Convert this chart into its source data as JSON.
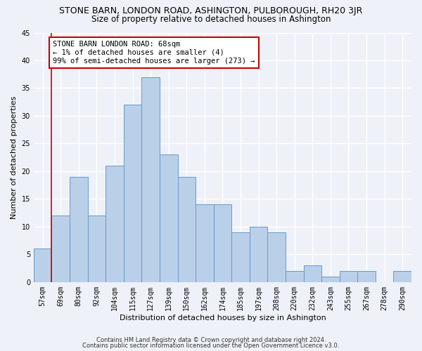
{
  "title": "STONE BARN, LONDON ROAD, ASHINGTON, PULBOROUGH, RH20 3JR",
  "subtitle": "Size of property relative to detached houses in Ashington",
  "xlabel": "Distribution of detached houses by size in Ashington",
  "ylabel": "Number of detached properties",
  "bin_labels": [
    "57sqm",
    "69sqm",
    "80sqm",
    "92sqm",
    "104sqm",
    "115sqm",
    "127sqm",
    "139sqm",
    "150sqm",
    "162sqm",
    "174sqm",
    "185sqm",
    "197sqm",
    "208sqm",
    "220sqm",
    "232sqm",
    "243sqm",
    "255sqm",
    "267sqm",
    "278sqm",
    "290sqm"
  ],
  "bar_heights": [
    6,
    12,
    19,
    12,
    21,
    32,
    37,
    23,
    19,
    14,
    14,
    9,
    10,
    9,
    2,
    3,
    1,
    2,
    2,
    0,
    2
  ],
  "bar_color": "#bad0e8",
  "bar_edge_color": "#6699cc",
  "annotation_line1": "STONE BARN LONDON ROAD: 68sqm",
  "annotation_line2": "← 1% of detached houses are smaller (4)",
  "annotation_line3": "99% of semi-detached houses are larger (273) →",
  "annotation_box_color": "#ffffff",
  "annotation_box_edge_color": "#cc0000",
  "ylim": [
    0,
    45
  ],
  "yticks": [
    0,
    5,
    10,
    15,
    20,
    25,
    30,
    35,
    40,
    45
  ],
  "footer_line1": "Contains HM Land Registry data © Crown copyright and database right 2024.",
  "footer_line2": "Contains public sector information licensed under the Open Government Licence v3.0.",
  "background_color": "#eef2f8",
  "grid_color": "#ffffff",
  "title_fontsize": 9,
  "subtitle_fontsize": 8.5,
  "ylabel_fontsize": 8,
  "xlabel_fontsize": 8,
  "tick_fontsize": 7,
  "annotation_fontsize": 7.5,
  "footer_fontsize": 6
}
